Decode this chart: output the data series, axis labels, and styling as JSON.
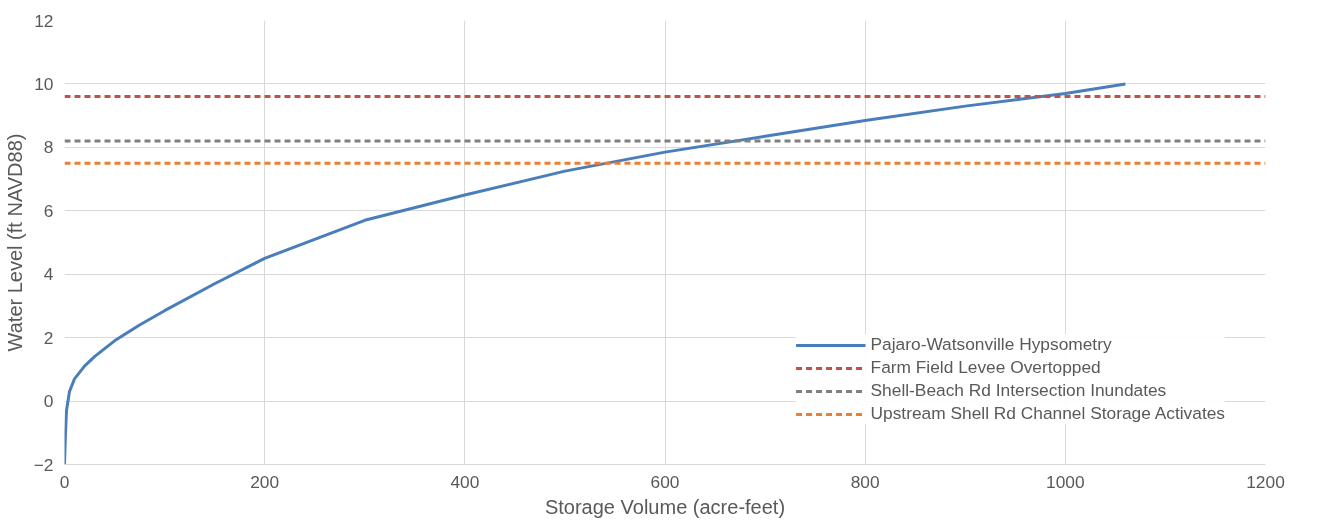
{
  "chart_data": {
    "type": "line",
    "xlabel": "Storage Volume (acre-feet)",
    "ylabel": "Water Level (ft NAVD88)",
    "x": [
      0,
      1,
      2,
      5,
      10,
      20,
      30,
      50,
      75,
      100,
      150,
      200,
      300,
      400,
      500,
      600,
      700,
      800,
      900,
      1000,
      1060
    ],
    "series": [
      {
        "name": "Pajaro-Watsonville Hypsometry",
        "color": "#4a7ebb",
        "values": [
          -2,
          -1,
          -0.3,
          0.3,
          0.7,
          1.1,
          1.4,
          1.9,
          2.4,
          2.85,
          3.7,
          4.5,
          5.7,
          6.5,
          7.25,
          7.85,
          8.35,
          8.85,
          9.3,
          9.7,
          10.0
        ]
      }
    ],
    "ref_lines": [
      {
        "axis": "y",
        "value": 9.6,
        "label": "Farm Field Levee Overtopped",
        "color": "#c0504d",
        "line_style": "dashed"
      },
      {
        "axis": "y",
        "value": 8.2,
        "label": "Shell-Beach Rd Intersection Inundates",
        "color": "#7f7f7f",
        "line_style": "dashed"
      },
      {
        "axis": "y",
        "value": 7.5,
        "label": "Upstream Shell Rd Channel Storage Activates",
        "color": "#ed7d31",
        "line_style": "dashed"
      }
    ],
    "xlim": [
      0,
      1200
    ],
    "xticks": [
      0,
      200,
      400,
      600,
      800,
      1000,
      1200
    ],
    "ylim": [
      -2,
      12
    ],
    "yticks": [
      -2,
      0,
      2,
      4,
      6,
      8,
      10,
      12
    ],
    "grid": true,
    "legend": "bottom right",
    "marker": "none",
    "line_style": "solid"
  }
}
